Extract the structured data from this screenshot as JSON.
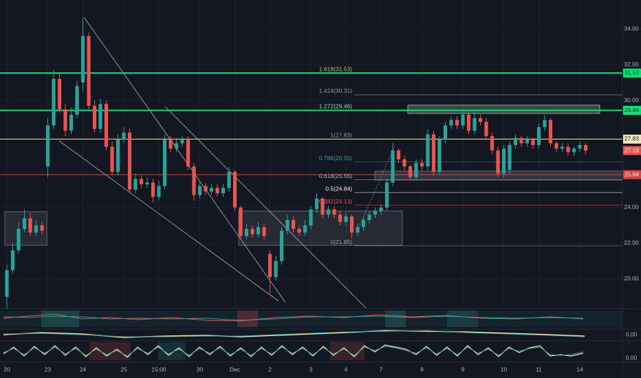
{
  "chart_data": {
    "type": "candlestick",
    "categories": [
      "20",
      null,
      null,
      null,
      null,
      null,
      null,
      "23",
      null,
      null,
      null,
      null,
      null,
      "24",
      null,
      null,
      null,
      null,
      null,
      null,
      "25",
      null,
      null,
      null,
      null,
      null,
      "15:00",
      null,
      null,
      null,
      null,
      null,
      null,
      "30",
      null,
      null,
      null,
      null,
      null,
      "Dec",
      null,
      null,
      null,
      null,
      null,
      "2",
      null,
      null,
      null,
      null,
      null,
      null,
      "3",
      null,
      null,
      null,
      null,
      null,
      "4",
      null,
      null,
      null,
      null,
      null,
      "7",
      null,
      null,
      null,
      null,
      null,
      null,
      "8",
      null,
      null,
      null,
      null,
      null,
      null,
      "9",
      null,
      null,
      null,
      null,
      null,
      null,
      "10",
      null,
      null,
      null,
      null,
      null,
      "11",
      null,
      null,
      null,
      null,
      null,
      null,
      "14",
      null
    ],
    "open": [
      19.0,
      20.5,
      21.6,
      22.8,
      23.4,
      22.6,
      23.0,
      26.3,
      28.6,
      31.2,
      29.5,
      28.3,
      29.2,
      31.0,
      33.6,
      29.7,
      28.4,
      29.8,
      27.4,
      26.0,
      27.8,
      28.2,
      25.0,
      25.6,
      25.3,
      25.4,
      24.6,
      25.2,
      27.8,
      27.3,
      27.6,
      27.8,
      26.3,
      24.7,
      25.2,
      24.9,
      25.1,
      24.8,
      25.1,
      26.0,
      24.0,
      22.4,
      22.8,
      22.5,
      22.9,
      21.4,
      20.1,
      21.0,
      22.7,
      23.3,
      22.8,
      22.6,
      23.0,
      23.9,
      24.5,
      23.6,
      23.9,
      23.6,
      23.2,
      23.5,
      22.6,
      22.9,
      23.3,
      23.6,
      23.8,
      24.0,
      25.4,
      27.2,
      26.7,
      26.3,
      25.7,
      26.5,
      26.3,
      28.1,
      26.0,
      27.8,
      28.6,
      28.9,
      28.6,
      29.2,
      28.3,
      29.0,
      28.8,
      28.0,
      27.2,
      25.9,
      26.1,
      27.5,
      27.9,
      27.6,
      27.8,
      27.5,
      28.5,
      28.9,
      27.6,
      27.3,
      27.4,
      27.1,
      27.3,
      27.5
    ],
    "high": [
      20.8,
      22.0,
      23.2,
      23.9,
      23.7,
      23.3,
      23.2,
      29.0,
      31.7,
      31.5,
      29.8,
      29.6,
      31.1,
      34.6,
      33.8,
      30.0,
      30.1,
      30.0,
      27.7,
      28.1,
      28.5,
      28.4,
      25.9,
      25.8,
      25.7,
      25.6,
      25.5,
      28.1,
      28.0,
      27.9,
      28.0,
      28.0,
      26.5,
      25.5,
      25.4,
      25.3,
      25.3,
      25.3,
      26.3,
      26.1,
      24.1,
      23.1,
      23.0,
      23.2,
      23.1,
      21.6,
      21.3,
      22.9,
      23.6,
      23.5,
      23.0,
      23.3,
      24.1,
      24.8,
      24.6,
      24.1,
      24.1,
      23.8,
      23.7,
      23.6,
      23.1,
      23.5,
      23.8,
      24.0,
      24.2,
      25.6,
      27.6,
      27.3,
      26.9,
      26.4,
      26.7,
      26.7,
      28.4,
      28.3,
      28.0,
      28.8,
      29.1,
      29.1,
      29.5,
      29.4,
      29.5,
      29.2,
      29.0,
      28.2,
      27.4,
      27.5,
      27.7,
      28.1,
      28.0,
      28.0,
      27.9,
      28.7,
      29.2,
      29.0,
      27.7,
      27.6,
      27.6,
      27.4,
      27.7,
      27.6
    ],
    "low": [
      18.3,
      20.3,
      21.4,
      22.6,
      22.4,
      22.4,
      22.5,
      25.7,
      28.4,
      29.3,
      28.0,
      28.1,
      29.0,
      30.5,
      29.5,
      28.2,
      28.2,
      27.2,
      25.8,
      25.8,
      27.6,
      24.8,
      24.8,
      25.1,
      25.1,
      24.3,
      24.4,
      25.0,
      27.1,
      27.1,
      27.4,
      26.1,
      24.4,
      24.5,
      24.7,
      24.7,
      24.6,
      24.6,
      24.9,
      23.8,
      22.2,
      22.2,
      22.3,
      22.3,
      22.2,
      19.2,
      19.9,
      20.8,
      22.5,
      22.6,
      22.4,
      22.4,
      22.8,
      23.7,
      23.4,
      23.4,
      23.4,
      23.0,
      23.0,
      22.3,
      22.4,
      22.7,
      23.1,
      23.4,
      23.6,
      23.8,
      25.2,
      26.5,
      26.1,
      25.5,
      25.5,
      26.1,
      26.1,
      25.8,
      25.8,
      27.6,
      28.4,
      28.4,
      28.4,
      28.1,
      28.1,
      28.6,
      27.8,
      27.0,
      25.7,
      25.7,
      25.9,
      27.3,
      27.4,
      27.4,
      27.3,
      27.3,
      28.3,
      27.4,
      27.1,
      27.1,
      26.9,
      26.9,
      27.1,
      27.0
    ],
    "close": [
      20.5,
      21.6,
      22.8,
      23.4,
      22.6,
      23.0,
      22.7,
      28.6,
      31.2,
      29.5,
      28.3,
      29.2,
      30.8,
      33.6,
      29.7,
      28.4,
      29.8,
      27.4,
      26.0,
      27.8,
      28.2,
      25.0,
      25.6,
      25.3,
      25.4,
      24.6,
      25.2,
      27.8,
      27.3,
      27.6,
      27.8,
      26.3,
      24.7,
      25.2,
      24.9,
      25.1,
      24.8,
      25.1,
      26.0,
      24.0,
      22.4,
      22.8,
      22.5,
      22.9,
      22.4,
      20.1,
      21.0,
      22.7,
      23.3,
      22.8,
      22.6,
      23.0,
      23.9,
      24.5,
      23.6,
      23.9,
      23.6,
      23.2,
      23.5,
      22.6,
      22.9,
      23.3,
      23.6,
      23.8,
      24.0,
      25.4,
      27.2,
      26.7,
      26.3,
      25.7,
      26.5,
      26.3,
      28.1,
      26.0,
      27.8,
      28.6,
      28.9,
      28.6,
      29.2,
      28.3,
      29.0,
      28.8,
      28.0,
      27.2,
      25.9,
      27.3,
      27.5,
      27.9,
      27.6,
      27.8,
      27.5,
      28.5,
      28.9,
      27.6,
      27.3,
      27.4,
      27.1,
      27.3,
      27.5,
      27.19
    ],
    "up_color": "#26a69a",
    "down_color": "#ef5350",
    "ylim": [
      18.38,
      35.62
    ],
    "yticks": [
      {
        "value": 34,
        "label": "34.00"
      },
      {
        "value": 32,
        "label": "32.00"
      },
      {
        "value": 30,
        "label": "30.00"
      },
      {
        "value": 24,
        "label": "24.00"
      },
      {
        "value": 22,
        "label": "22.00"
      },
      {
        "value": 20,
        "label": "20.00"
      }
    ],
    "grid": true,
    "price_labels": [
      {
        "value": 31.53,
        "color": "#00e676",
        "line_width": 2
      },
      {
        "value": 29.44,
        "color": "#00e676",
        "line_width": 2
      },
      {
        "value": 27.83,
        "color": "#f3e5c0",
        "line_width": 1
      },
      {
        "value": 27.19,
        "color": "#ef5350",
        "line_width": 0
      },
      {
        "value": 25.84,
        "color": "#e04040",
        "line_width": 1
      }
    ],
    "fib_levels": [
      {
        "value": 31.53,
        "label": "1.618(31.53)",
        "color": "#9ccc65"
      },
      {
        "value": 30.31,
        "label": "1.414(30.31)",
        "color": "#9598a1"
      },
      {
        "value": 29.46,
        "label": "1.272(29.46)",
        "color": "#a5d6a7"
      },
      {
        "value": 27.83,
        "label": "1(27.83)",
        "color": "#9598a1"
      },
      {
        "value": 26.55,
        "label": "0.786(26.55)",
        "color": "#26a69a"
      },
      {
        "value": 25.55,
        "label": "0.618(25.55)",
        "color": "#80cbc4"
      },
      {
        "value": 24.84,
        "label": "0.5(24.84)",
        "color": "#f0f0f0"
      },
      {
        "value": 24.13,
        "label": "0.382(24.13)",
        "color": "#ef5350"
      },
      {
        "value": 21.85,
        "label": "0(21.85)",
        "color": "#9598a1"
      }
    ],
    "indicator_yticks": [
      {
        "value": 0,
        "label": "0.00"
      },
      {
        "value": 0,
        "label": "0.00"
      }
    ]
  }
}
